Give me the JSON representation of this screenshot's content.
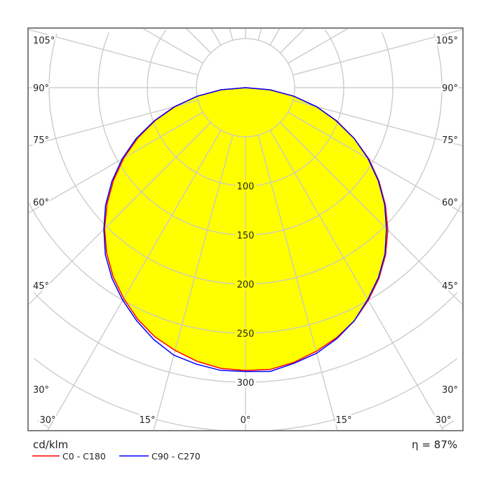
{
  "chart_data": {
    "type": "polar",
    "unit_label": "cd/klm",
    "efficiency_label": "η = 87%",
    "radial_ticks": [
      100,
      150,
      200,
      250,
      300
    ],
    "radial_grid_step": 50,
    "angle_ticks_side": [
      "105°",
      "90°",
      "75°",
      "60°",
      "45°",
      "30°"
    ],
    "angle_ticks_bottom": [
      "30°",
      "15°",
      "0°",
      "15°",
      "30°"
    ],
    "angles_deg": [
      0,
      5,
      10,
      15,
      20,
      25,
      30,
      35,
      40,
      45,
      50,
      55,
      60,
      65,
      70,
      75,
      80,
      85,
      90
    ],
    "fill_color": "#ffff00",
    "grid_color": "#c8c8c8",
    "series": [
      {
        "name": "C0 - C180",
        "color": "#ff0000",
        "right_plane": "C0",
        "left_plane": "C180",
        "right_values": [
          288,
          288,
          284,
          278,
          271,
          262,
          250,
          237,
          222,
          205,
          186,
          166,
          145,
          122,
          99,
          75,
          50,
          25,
          0
        ],
        "left_values": [
          288,
          287,
          283,
          277,
          270,
          260,
          248,
          235,
          220,
          203,
          184,
          164,
          143,
          121,
          98,
          74,
          50,
          25,
          0
        ]
      },
      {
        "name": "C90 - C270",
        "color": "#0000ff",
        "right_plane": "C90",
        "left_plane": "C270",
        "right_values": [
          289,
          290,
          285,
          280,
          272,
          262,
          249,
          236,
          221,
          203,
          185,
          165,
          144,
          122,
          98,
          75,
          50,
          25,
          0
        ],
        "left_values": [
          289,
          289,
          286,
          282,
          273,
          262,
          250,
          237,
          222,
          204,
          186,
          166,
          145,
          123,
          99,
          75,
          50,
          25,
          0
        ]
      }
    ]
  }
}
